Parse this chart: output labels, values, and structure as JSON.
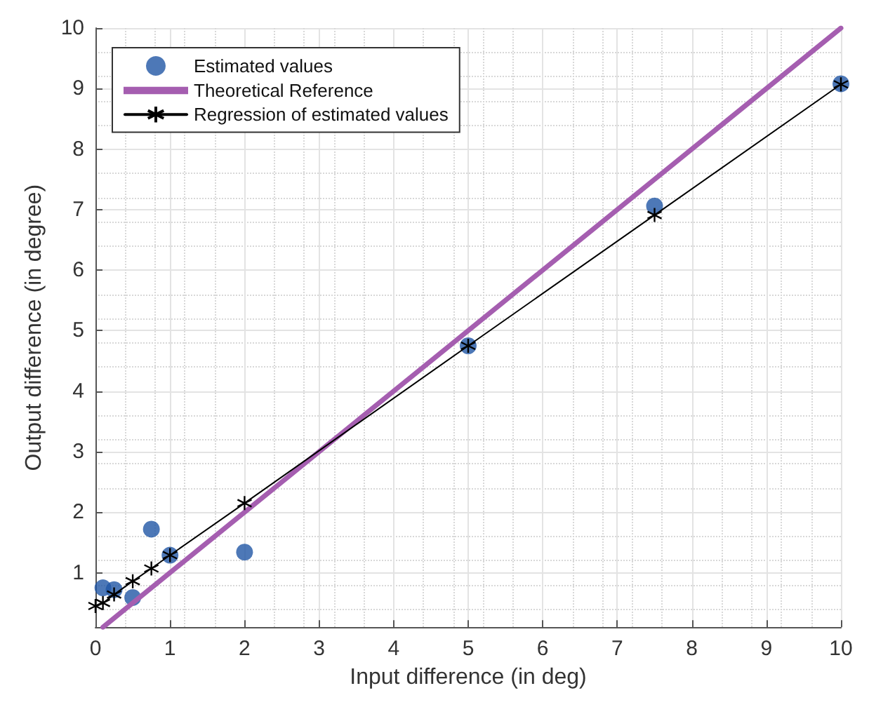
{
  "chart_data": {
    "type": "scatter",
    "xlabel": "Input difference (in deg)",
    "ylabel": "Output difference (in degree)",
    "xlim": [
      0,
      10
    ],
    "ylim": [
      0.1,
      10
    ],
    "xticks": [
      0,
      1,
      2,
      3,
      4,
      5,
      6,
      7,
      8,
      9,
      10
    ],
    "yticks": [
      1,
      2,
      3,
      4,
      5,
      6,
      7,
      8,
      9,
      10
    ],
    "grid": true,
    "legend": "top left",
    "series": [
      {
        "name": "Estimated values",
        "marker": "circle",
        "color": "#2156a5",
        "x": [
          0.1,
          0.25,
          0.5,
          0.75,
          1,
          2,
          5,
          7.5,
          10
        ],
        "values": [
          0.75,
          0.72,
          0.59,
          1.72,
          1.29,
          1.34,
          4.75,
          7.06,
          9.08
        ]
      },
      {
        "name": "Theoretical Reference",
        "type": "line",
        "marker": "none",
        "line_style": "solid",
        "color": "#a55eb0",
        "x": [
          0.1,
          10
        ],
        "values": [
          0.1,
          10
        ]
      },
      {
        "name": "Regression of estimated values",
        "type": "line",
        "marker": "cross",
        "line_style": "solid",
        "color": "#000000",
        "x": [
          0,
          0.1,
          0.25,
          0.5,
          0.75,
          1,
          2,
          5,
          7.5,
          10
        ],
        "values": [
          0.45,
          0.5,
          0.64,
          0.86,
          1.07,
          1.29,
          2.15,
          4.75,
          6.91,
          9.07
        ]
      }
    ]
  }
}
